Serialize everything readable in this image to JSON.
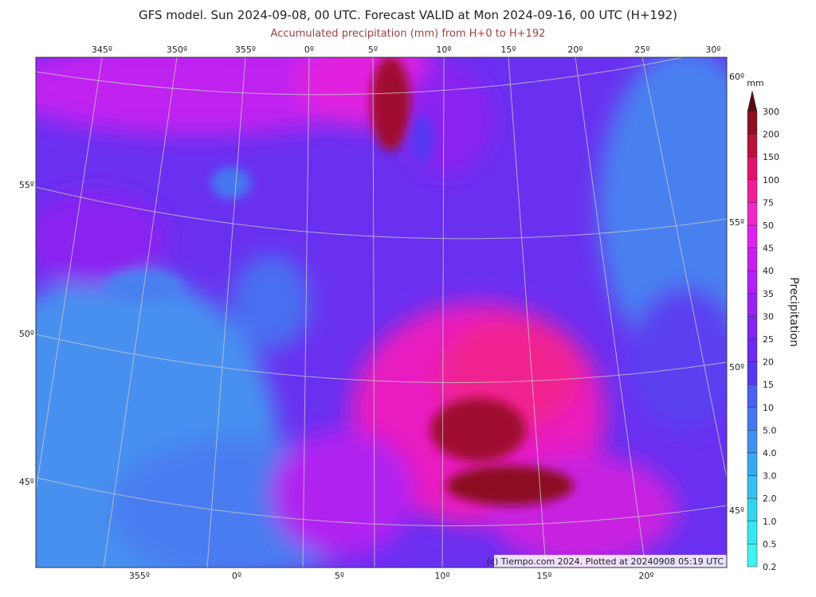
{
  "title": "GFS model. Sun 2024-09-08, 00 UTC. Forecast VALID at Mon 2024-09-16, 00 UTC (H+192)",
  "subtitle": "Accumulated precipitation (mm) from H+0 to H+192",
  "top_lon_labels": [
    "345º",
    "350º",
    "355º",
    "0º",
    "5º",
    "10º",
    "15º",
    "20º",
    "25º",
    "30º"
  ],
  "bottom_lon_labels": [
    "355º",
    "0º",
    "5º",
    "10º",
    "15º",
    "20º"
  ],
  "left_lat_labels": [
    "55º",
    "50º",
    "45º"
  ],
  "right_lat_labels": [
    "60º",
    "55º",
    "50º",
    "45º"
  ],
  "credit": "(c) Tiempo.com 2024. Plotted at 20240908 05:19 UTC",
  "colorbar": {
    "unit": "mm",
    "label": "Precipitation",
    "levels": [
      "300",
      "200",
      "150",
      "100",
      "75",
      "50",
      "45",
      "40",
      "35",
      "30",
      "25",
      "20",
      "15",
      "10",
      "5.0",
      "4.0",
      "3.0",
      "2.0",
      "1.0",
      "0.5",
      "0.2"
    ],
    "top_color": "#5a0a12",
    "band_colors": [
      "#8c0f24",
      "#b8123e",
      "#e0146a",
      "#f01e96",
      "#f028c8",
      "#e020f0",
      "#c81ef0",
      "#b020f0",
      "#9822f0",
      "#8024f0",
      "#6a2af0",
      "#5538f0",
      "#4a60f0",
      "#4478f0",
      "#3f90f0",
      "#3aa8f0",
      "#36c0f0",
      "#34d4f0",
      "#38e6f0",
      "#40f2f2"
    ]
  }
}
